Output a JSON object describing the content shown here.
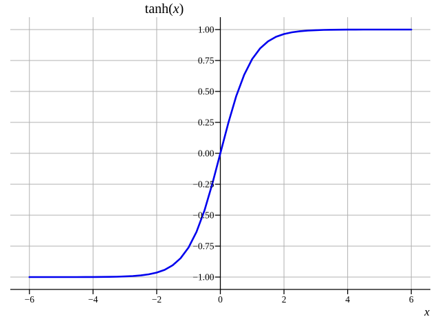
{
  "figure": {
    "title": {
      "prefix": "tanh(",
      "var": "x",
      "suffix": ")"
    },
    "xlabel": "x",
    "background_color": "#ffffff"
  },
  "chart_data": {
    "type": "line",
    "title": "tanh(x)",
    "xlabel": "x",
    "ylabel": "",
    "xlim": [
      -6.6,
      6.6
    ],
    "ylim": [
      -1.1,
      1.1
    ],
    "grid": true,
    "legend": false,
    "x_ticks": [
      -6,
      -4,
      -2,
      0,
      2,
      4,
      6
    ],
    "x_tick_labels": [
      "−6",
      "−4",
      "−2",
      "0",
      "2",
      "4",
      "6"
    ],
    "y_ticks": [
      1.0,
      0.75,
      0.5,
      0.25,
      0.0,
      -0.25,
      -0.5,
      -0.75,
      -1.0
    ],
    "y_tick_labels": [
      "1.00",
      "0.75",
      "0.50",
      "0.25",
      "0.00",
      "−0.25",
      "−0.50",
      "−0.75",
      "−1.00"
    ],
    "line_color": "#0000ee",
    "grid_color": "#b0b0b0",
    "axis_color": "#000000",
    "series": [
      {
        "name": "tanh(x)",
        "x": [
          -6,
          -5.75,
          -5.5,
          -5.25,
          -5,
          -4.75,
          -4.5,
          -4.25,
          -4,
          -3.75,
          -3.5,
          -3.25,
          -3,
          -2.75,
          -2.5,
          -2.25,
          -2,
          -1.75,
          -1.5,
          -1.25,
          -1,
          -0.75,
          -0.5,
          -0.25,
          0,
          0.25,
          0.5,
          0.75,
          1,
          1.25,
          1.5,
          1.75,
          2,
          2.25,
          2.5,
          2.75,
          3,
          3.25,
          3.5,
          3.75,
          4,
          4.25,
          4.5,
          4.75,
          5,
          5.25,
          5.5,
          5.75,
          6
        ],
        "y": [
          -1,
          -1,
          -1,
          -0.9999,
          -0.9999,
          -0.9999,
          -0.9998,
          -0.9996,
          -0.9993,
          -0.9989,
          -0.9982,
          -0.997,
          -0.9951,
          -0.9919,
          -0.9866,
          -0.978,
          -0.964,
          -0.9414,
          -0.9051,
          -0.8483,
          -0.7616,
          -0.6351,
          -0.4621,
          -0.2449,
          0,
          0.2449,
          0.4621,
          0.6351,
          0.7616,
          0.8483,
          0.9051,
          0.9414,
          0.964,
          0.978,
          0.9866,
          0.9919,
          0.9951,
          0.997,
          0.9982,
          0.9989,
          0.9993,
          0.9996,
          0.9998,
          0.9999,
          0.9999,
          0.9999,
          1,
          1,
          1
        ]
      }
    ]
  }
}
